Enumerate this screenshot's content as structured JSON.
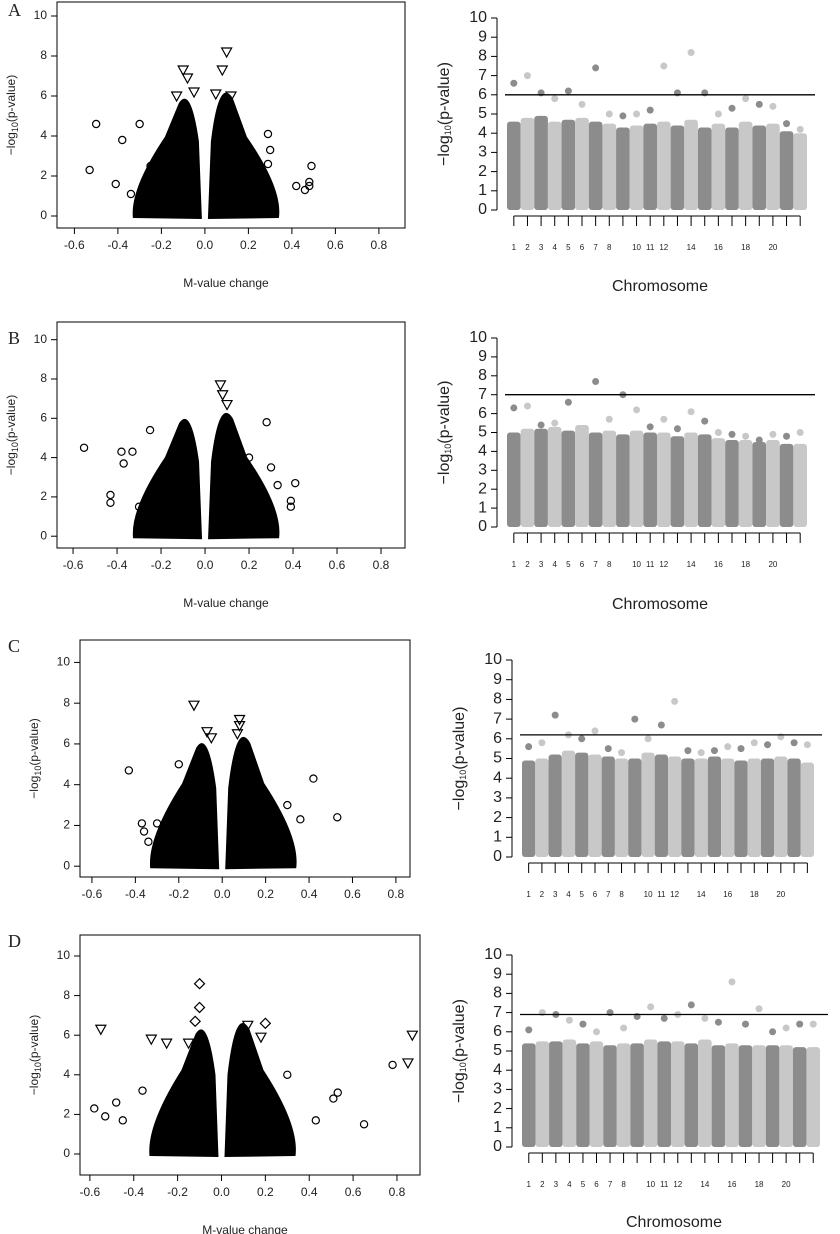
{
  "chart_data": [
    {
      "type": "scatter",
      "panel": "A",
      "x_label": "M-value change",
      "y_label_parts": [
        "−log",
        "10",
        "(p-value)"
      ],
      "xlim": [
        -0.68,
        0.92
      ],
      "ylim": [
        -0.6,
        10.7
      ],
      "xticks": [
        -0.6,
        -0.4,
        -0.2,
        0.0,
        0.2,
        0.4,
        0.6,
        0.8
      ],
      "yticks": [
        0,
        2,
        4,
        6,
        8,
        10
      ],
      "series": [
        {
          "marker": "circle",
          "x": [
            -0.53,
            -0.5,
            -0.41,
            -0.38,
            -0.34,
            -0.3,
            -0.25,
            0.25,
            0.29,
            0.3,
            0.29,
            0.42,
            0.46,
            0.48,
            0.49,
            0.48
          ],
          "values": [
            2.3,
            4.6,
            1.6,
            3.8,
            1.1,
            4.6,
            2.5,
            2.2,
            4.1,
            3.3,
            2.6,
            1.5,
            1.3,
            1.5,
            2.5,
            1.7
          ]
        },
        {
          "marker": "triangle",
          "x": [
            -0.1,
            -0.08,
            0.1,
            0.08,
            0.05,
            -0.13,
            -0.05,
            0.12
          ],
          "values": [
            7.3,
            6.9,
            8.2,
            7.3,
            6.1,
            6.0,
            6.2,
            6.0
          ]
        }
      ]
    },
    {
      "type": "manhattan",
      "x_label": "Chromosome",
      "y_label_parts": [
        "−log",
        "10",
        "(p-value)"
      ],
      "ylim": [
        0,
        10
      ],
      "yticks": [
        0,
        1,
        2,
        3,
        4,
        5,
        6,
        7,
        8,
        9,
        10
      ],
      "threshold": 6,
      "colors": [
        "#8c8c8c",
        "#c8c8c8"
      ],
      "categories": [
        "1",
        "2",
        "3",
        "4",
        "5",
        "6",
        "7",
        "8",
        null,
        "10",
        "11",
        "12",
        null,
        "14",
        null,
        "16",
        null,
        "18",
        null,
        "20",
        null,
        null
      ],
      "series": [
        {
          "style": "column",
          "values": [
            4.6,
            4.8,
            4.9,
            4.6,
            4.7,
            4.8,
            4.6,
            4.5,
            4.3,
            4.4,
            4.5,
            4.6,
            4.4,
            4.7,
            4.3,
            4.5,
            4.3,
            4.6,
            4.4,
            4.5,
            4.1,
            4.0
          ]
        },
        {
          "style": "point",
          "values": [
            6.6,
            7.0,
            6.1,
            5.8,
            6.2,
            5.5,
            7.4,
            5.0,
            4.9,
            5.0,
            5.2,
            7.5,
            6.1,
            8.2,
            6.1,
            5.0,
            5.3,
            5.8,
            5.5,
            5.4,
            4.5,
            4.2
          ]
        }
      ]
    },
    {
      "type": "scatter",
      "panel": "B",
      "x_label": "M-value change",
      "y_label_parts": [
        "−log",
        "10",
        "(p-value)"
      ],
      "xlim": [
        -0.673,
        0.909
      ],
      "ylim": [
        -0.6,
        10.9
      ],
      "xticks": [
        -0.6,
        -0.4,
        -0.2,
        0.0,
        0.2,
        0.4,
        0.6,
        0.8
      ],
      "yticks": [
        0,
        2,
        4,
        6,
        8,
        10
      ],
      "series": [
        {
          "marker": "circle",
          "x": [
            -0.55,
            -0.43,
            -0.43,
            -0.38,
            -0.37,
            -0.33,
            -0.3,
            -0.25,
            0.2,
            0.28,
            0.3,
            0.33,
            0.39,
            0.41,
            0.39
          ],
          "values": [
            4.5,
            2.1,
            1.7,
            4.3,
            3.7,
            4.3,
            1.5,
            5.4,
            4.0,
            5.8,
            3.5,
            2.6,
            1.5,
            2.7,
            1.8
          ]
        },
        {
          "marker": "triangle",
          "x": [
            0.07,
            0.08,
            0.1
          ],
          "values": [
            7.7,
            7.2,
            6.7
          ]
        }
      ]
    },
    {
      "type": "manhattan",
      "x_label": "Chromosome",
      "y_label_parts": [
        "−log",
        "10",
        "(p-value)"
      ],
      "ylim": [
        0,
        10
      ],
      "yticks": [
        0,
        1,
        2,
        3,
        4,
        5,
        6,
        7,
        8,
        9,
        10
      ],
      "threshold": 7,
      "colors": [
        "#8c8c8c",
        "#c8c8c8"
      ],
      "categories": [
        "1",
        "2",
        "3",
        "4",
        "5",
        "6",
        "7",
        "8",
        null,
        "10",
        "11",
        "12",
        null,
        "14",
        null,
        "16",
        null,
        "18",
        null,
        "20",
        null,
        null
      ],
      "series": [
        {
          "style": "column",
          "values": [
            5.0,
            5.2,
            5.2,
            5.3,
            5.1,
            5.4,
            5.0,
            5.1,
            4.9,
            5.1,
            5.0,
            5.0,
            4.8,
            5.0,
            4.9,
            4.7,
            4.6,
            4.6,
            4.5,
            4.6,
            4.4,
            4.4
          ]
        },
        {
          "style": "point",
          "values": [
            6.3,
            6.4,
            5.4,
            5.5,
            6.6,
            5.2,
            7.7,
            5.7,
            7.0,
            6.2,
            5.3,
            5.7,
            5.2,
            6.1,
            5.6,
            5.0,
            4.9,
            4.8,
            4.6,
            4.9,
            4.8,
            5.0
          ]
        }
      ]
    },
    {
      "type": "scatter",
      "panel": "C",
      "y_label_parts": [
        "−log",
        "10",
        "(p-value)"
      ],
      "xlim": [
        -0.655,
        0.865
      ],
      "ylim": [
        -0.53,
        11.1
      ],
      "xticks": [
        -0.6,
        -0.4,
        -0.2,
        0.0,
        0.2,
        0.4,
        0.6,
        0.8
      ],
      "yticks": [
        0,
        2,
        4,
        6,
        8,
        10
      ],
      "series": [
        {
          "marker": "circle",
          "x": [
            -0.43,
            -0.37,
            -0.36,
            -0.34,
            -0.3,
            -0.2,
            0.3,
            0.36,
            0.42,
            0.53
          ],
          "values": [
            4.7,
            2.1,
            1.7,
            1.2,
            2.1,
            5.0,
            3.0,
            2.3,
            4.3,
            2.4
          ]
        },
        {
          "marker": "triangle",
          "x": [
            -0.13,
            -0.07,
            -0.05,
            0.07,
            0.08,
            0.08
          ],
          "values": [
            7.9,
            6.6,
            6.3,
            6.5,
            6.9,
            7.2
          ]
        }
      ]
    },
    {
      "type": "manhattan",
      "y_label_parts": [
        "−log",
        "10",
        "(p-value)"
      ],
      "ylim": [
        0,
        10
      ],
      "yticks": [
        0,
        1,
        2,
        3,
        4,
        5,
        6,
        7,
        8,
        9,
        10
      ],
      "threshold": 6.2,
      "colors": [
        "#8c8c8c",
        "#c8c8c8"
      ],
      "categories": [
        "1",
        "2",
        "3",
        "4",
        "5",
        "6",
        "7",
        "8",
        null,
        "10",
        "11",
        "12",
        null,
        "14",
        null,
        "16",
        null,
        "18",
        null,
        "20",
        null,
        null
      ],
      "series": [
        {
          "style": "column",
          "values": [
            4.9,
            5.0,
            5.2,
            5.4,
            5.3,
            5.2,
            5.1,
            5.0,
            5.0,
            5.3,
            5.2,
            5.1,
            5.0,
            5.0,
            5.1,
            5.0,
            4.9,
            5.0,
            5.0,
            5.1,
            5.0,
            4.8
          ]
        },
        {
          "style": "point",
          "values": [
            5.6,
            5.8,
            7.2,
            6.2,
            6.0,
            6.4,
            5.5,
            5.3,
            7.0,
            6.0,
            6.7,
            7.9,
            5.4,
            5.3,
            5.4,
            5.6,
            5.5,
            5.8,
            5.7,
            6.1,
            5.8,
            5.7
          ]
        }
      ]
    },
    {
      "type": "scatter",
      "panel": "D",
      "x_label": "M-value change",
      "y_label_parts": [
        "−log",
        "10",
        "(p-value)"
      ],
      "xlim": [
        -0.645,
        0.905
      ],
      "ylim": [
        -1.06,
        11.06
      ],
      "xticks": [
        -0.6,
        -0.4,
        -0.2,
        0.0,
        0.2,
        0.4,
        0.6,
        0.8
      ],
      "yticks": [
        0,
        2,
        4,
        6,
        8,
        10
      ],
      "series": [
        {
          "marker": "circle",
          "x": [
            -0.58,
            -0.53,
            -0.48,
            -0.45,
            -0.36,
            0.3,
            0.43,
            0.51,
            0.53,
            0.65,
            0.78
          ],
          "values": [
            2.3,
            1.9,
            2.6,
            1.7,
            3.2,
            4.0,
            1.7,
            2.8,
            3.1,
            1.5,
            4.5
          ]
        },
        {
          "marker": "triangle",
          "x": [
            -0.55,
            -0.32,
            -0.25,
            -0.15,
            0.12,
            0.18,
            0.85,
            0.87
          ],
          "values": [
            6.3,
            5.8,
            5.6,
            5.6,
            6.5,
            5.9,
            4.6,
            6.0
          ]
        },
        {
          "marker": "diamond",
          "x": [
            -0.1,
            -0.1,
            -0.12,
            0.2
          ],
          "values": [
            8.6,
            7.4,
            6.7,
            6.6
          ]
        }
      ]
    },
    {
      "type": "manhattan",
      "x_label": "Chromosome",
      "y_label_parts": [
        "−log",
        "10",
        "(p-value)"
      ],
      "ylim": [
        0,
        10
      ],
      "yticks": [
        0,
        1,
        2,
        3,
        4,
        5,
        6,
        7,
        8,
        9,
        10
      ],
      "threshold": 6.9,
      "colors": [
        "#8c8c8c",
        "#c8c8c8"
      ],
      "categories": [
        "1",
        "2",
        "3",
        "4",
        "5",
        "6",
        "7",
        "8",
        null,
        "10",
        "11",
        "12",
        null,
        "14",
        null,
        "16",
        null,
        "18",
        null,
        "20",
        null,
        null
      ],
      "series": [
        {
          "style": "column",
          "values": [
            5.4,
            5.5,
            5.5,
            5.6,
            5.4,
            5.5,
            5.3,
            5.4,
            5.4,
            5.6,
            5.5,
            5.5,
            5.4,
            5.6,
            5.3,
            5.4,
            5.3,
            5.3,
            5.3,
            5.3,
            5.2,
            5.2
          ]
        },
        {
          "style": "point",
          "values": [
            6.1,
            7.0,
            6.9,
            6.6,
            6.4,
            6.0,
            7.0,
            6.2,
            6.8,
            7.3,
            6.7,
            6.9,
            7.4,
            6.7,
            6.5,
            8.6,
            6.4,
            7.2,
            6.0,
            6.2,
            6.4,
            6.4
          ]
        }
      ]
    }
  ]
}
